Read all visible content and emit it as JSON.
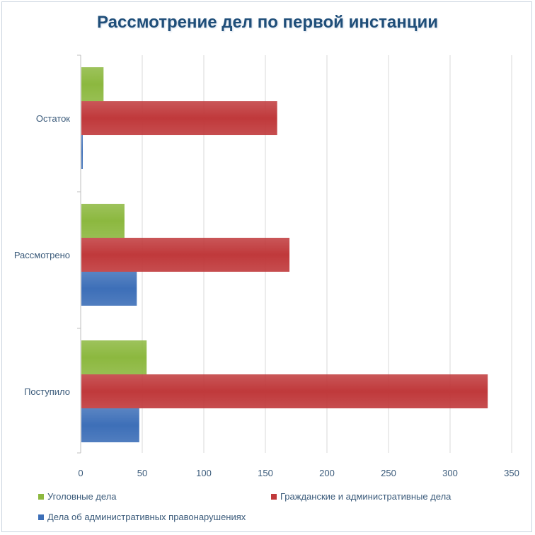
{
  "chart_data": {
    "type": "bar",
    "orientation": "horizontal",
    "title": "Рассмотрение дел по первой инстанции",
    "categories": [
      "Остаток",
      "Рассмотрено",
      "Поступило"
    ],
    "series": [
      {
        "name": "Уголовные дела",
        "color": "#8cb83f",
        "values": [
          18,
          35,
          53
        ]
      },
      {
        "name": "Гражданские и административные дела",
        "color": "#c0393b",
        "values": [
          159,
          169,
          330
        ]
      },
      {
        "name": "Дела об административных правонарушениях",
        "color": "#3d6fb8",
        "values": [
          1,
          45,
          47
        ]
      }
    ],
    "xlim": [
      0,
      350
    ],
    "xticks": [
      "0",
      "50",
      "100",
      "150",
      "200",
      "250",
      "300",
      "350"
    ],
    "grid": true,
    "legend_position": "bottom"
  }
}
